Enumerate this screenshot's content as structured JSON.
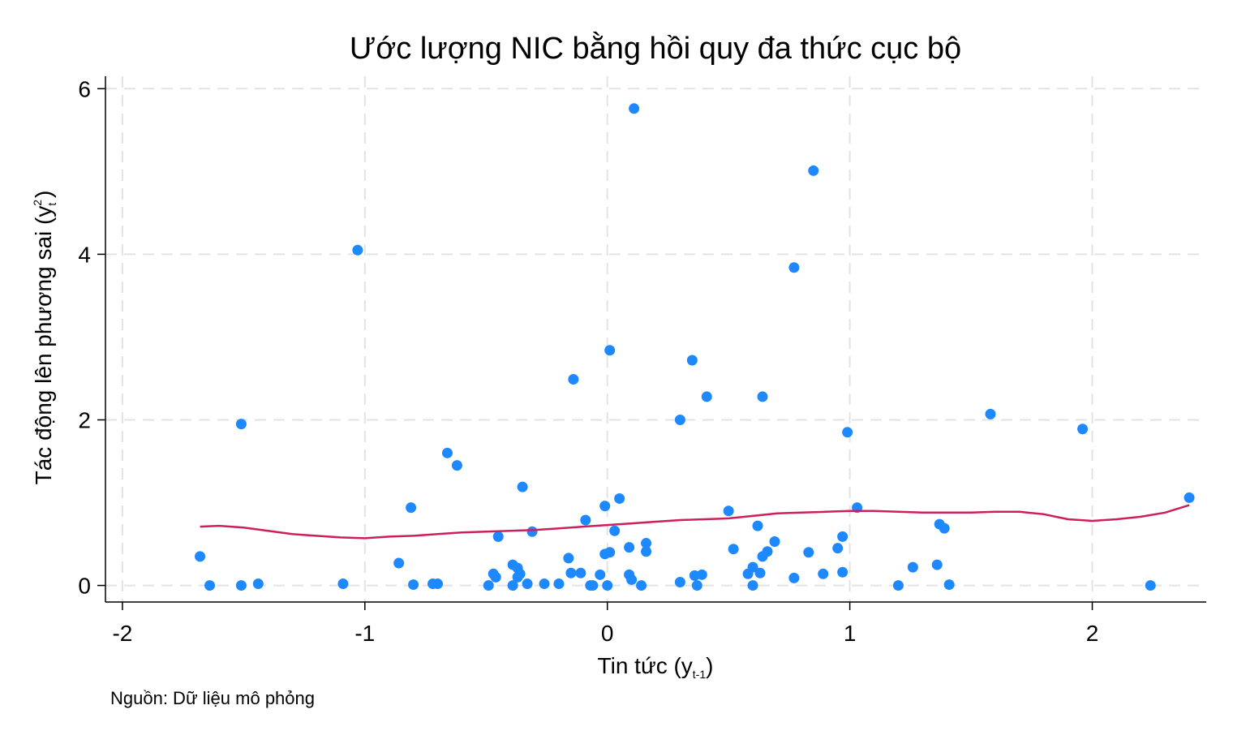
{
  "chart_data": {
    "type": "scatter",
    "title": "Ước lượng NIC bằng hồi quy đa thức cục bộ",
    "xlabel": {
      "base": "Tin tức (y",
      "sub": "t-1",
      "end": ")"
    },
    "ylabel": {
      "base": "Tác động lên phương sai (y",
      "sub": "t",
      "sup": "2",
      "end": ")"
    },
    "xlim": [
      -2.07,
      2.47
    ],
    "ylim": [
      -0.2,
      6.15
    ],
    "xticks": [
      -2,
      -1,
      0,
      1,
      2
    ],
    "xtick_labels": [
      "-2",
      "-1",
      "0",
      "1",
      "2"
    ],
    "yticks": [
      0,
      2,
      4,
      6
    ],
    "ytick_labels": [
      "0",
      "2",
      "4",
      "6"
    ],
    "grid": true,
    "note": "Nguồn: Dữ liệu mô phỏng",
    "colors": {
      "points": "#1e88ff",
      "line": "#cc1f5e",
      "grid": "#e3e3e3"
    },
    "series": [
      {
        "kind": "scatter",
        "points": [
          [
            -1.68,
            0.35
          ],
          [
            -1.64,
            0.0
          ],
          [
            -1.51,
            1.95
          ],
          [
            -1.51,
            0.0
          ],
          [
            -1.44,
            0.02
          ],
          [
            -1.09,
            0.02
          ],
          [
            -1.03,
            4.05
          ],
          [
            -0.86,
            0.27
          ],
          [
            -0.81,
            0.94
          ],
          [
            -0.8,
            0.01
          ],
          [
            -0.72,
            0.02
          ],
          [
            -0.7,
            0.02
          ],
          [
            -0.66,
            1.6
          ],
          [
            -0.62,
            1.45
          ],
          [
            -0.49,
            0.0
          ],
          [
            -0.47,
            0.14
          ],
          [
            -0.46,
            0.1
          ],
          [
            -0.45,
            0.59
          ],
          [
            -0.39,
            0.25
          ],
          [
            -0.39,
            0.0
          ],
          [
            -0.37,
            0.21
          ],
          [
            -0.37,
            0.1
          ],
          [
            -0.36,
            0.14
          ],
          [
            -0.35,
            1.19
          ],
          [
            -0.33,
            0.02
          ],
          [
            -0.31,
            0.65
          ],
          [
            -0.26,
            0.02
          ],
          [
            -0.2,
            0.02
          ],
          [
            -0.16,
            0.33
          ],
          [
            -0.15,
            0.15
          ],
          [
            -0.14,
            2.49
          ],
          [
            -0.11,
            0.15
          ],
          [
            -0.09,
            0.79
          ],
          [
            -0.07,
            0.0
          ],
          [
            -0.06,
            0.0
          ],
          [
            -0.03,
            0.13
          ],
          [
            -0.01,
            0.96
          ],
          [
            -0.01,
            0.38
          ],
          [
            0.0,
            0.0
          ],
          [
            0.01,
            0.4
          ],
          [
            0.01,
            2.84
          ],
          [
            0.03,
            0.66
          ],
          [
            0.05,
            1.05
          ],
          [
            0.09,
            0.46
          ],
          [
            0.09,
            0.13
          ],
          [
            0.1,
            0.07
          ],
          [
            0.11,
            5.76
          ],
          [
            0.14,
            0.0
          ],
          [
            0.16,
            0.51
          ],
          [
            0.16,
            0.41
          ],
          [
            0.3,
            2.0
          ],
          [
            0.3,
            0.04
          ],
          [
            0.35,
            2.72
          ],
          [
            0.36,
            0.12
          ],
          [
            0.37,
            0.0
          ],
          [
            0.39,
            0.13
          ],
          [
            0.41,
            2.28
          ],
          [
            0.5,
            0.9
          ],
          [
            0.52,
            0.44
          ],
          [
            0.58,
            0.14
          ],
          [
            0.6,
            0.0
          ],
          [
            0.6,
            0.22
          ],
          [
            0.62,
            0.72
          ],
          [
            0.63,
            0.15
          ],
          [
            0.64,
            0.35
          ],
          [
            0.64,
            2.28
          ],
          [
            0.66,
            0.41
          ],
          [
            0.69,
            0.53
          ],
          [
            0.77,
            3.84
          ],
          [
            0.77,
            0.09
          ],
          [
            0.83,
            0.4
          ],
          [
            0.85,
            5.01
          ],
          [
            0.89,
            0.14
          ],
          [
            0.95,
            0.45
          ],
          [
            0.97,
            0.59
          ],
          [
            0.97,
            0.16
          ],
          [
            0.99,
            1.85
          ],
          [
            1.03,
            0.94
          ],
          [
            1.2,
            0.0
          ],
          [
            1.26,
            0.22
          ],
          [
            1.36,
            0.25
          ],
          [
            1.37,
            0.74
          ],
          [
            1.39,
            0.69
          ],
          [
            1.41,
            0.01
          ],
          [
            1.58,
            2.07
          ],
          [
            1.96,
            1.89
          ],
          [
            2.24,
            0.0
          ],
          [
            2.4,
            1.06
          ]
        ]
      },
      {
        "kind": "line",
        "points": [
          [
            -1.68,
            0.71
          ],
          [
            -1.6,
            0.72
          ],
          [
            -1.5,
            0.7
          ],
          [
            -1.4,
            0.66
          ],
          [
            -1.3,
            0.62
          ],
          [
            -1.2,
            0.6
          ],
          [
            -1.1,
            0.58
          ],
          [
            -1.0,
            0.57
          ],
          [
            -0.9,
            0.59
          ],
          [
            -0.8,
            0.6
          ],
          [
            -0.7,
            0.62
          ],
          [
            -0.6,
            0.64
          ],
          [
            -0.5,
            0.65
          ],
          [
            -0.4,
            0.66
          ],
          [
            -0.3,
            0.67
          ],
          [
            -0.2,
            0.69
          ],
          [
            -0.1,
            0.71
          ],
          [
            0.0,
            0.73
          ],
          [
            0.1,
            0.75
          ],
          [
            0.2,
            0.77
          ],
          [
            0.3,
            0.79
          ],
          [
            0.4,
            0.8
          ],
          [
            0.5,
            0.81
          ],
          [
            0.6,
            0.84
          ],
          [
            0.7,
            0.87
          ],
          [
            0.8,
            0.88
          ],
          [
            0.9,
            0.89
          ],
          [
            1.0,
            0.9
          ],
          [
            1.1,
            0.9
          ],
          [
            1.2,
            0.89
          ],
          [
            1.3,
            0.88
          ],
          [
            1.4,
            0.88
          ],
          [
            1.5,
            0.88
          ],
          [
            1.6,
            0.89
          ],
          [
            1.7,
            0.89
          ],
          [
            1.8,
            0.86
          ],
          [
            1.9,
            0.8
          ],
          [
            2.0,
            0.78
          ],
          [
            2.1,
            0.8
          ],
          [
            2.2,
            0.83
          ],
          [
            2.3,
            0.88
          ],
          [
            2.4,
            0.97
          ]
        ]
      }
    ]
  }
}
